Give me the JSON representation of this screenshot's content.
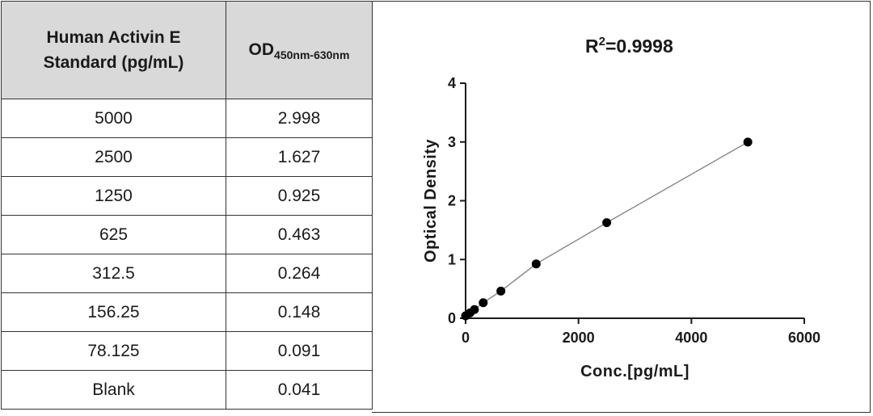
{
  "table": {
    "header_col1": "Human Activin E Standard (pg/mL)",
    "header_col2_main": "OD",
    "header_col2_sub": "450nm-630nm",
    "rows": [
      {
        "conc": "5000",
        "od": "2.998"
      },
      {
        "conc": "2500",
        "od": "1.627"
      },
      {
        "conc": "1250",
        "od": "0.925"
      },
      {
        "conc": "625",
        "od": "0.463"
      },
      {
        "conc": "312.5",
        "od": "0.264"
      },
      {
        "conc": "156.25",
        "od": "0.148"
      },
      {
        "conc": "78.125",
        "od": "0.091"
      },
      {
        "conc": "Blank",
        "od": "0.041"
      }
    ]
  },
  "chart_data": {
    "type": "scatter",
    "title": "R2=0.9998",
    "title_main": "R",
    "title_sup": "2",
    "title_rest": "=0.9998",
    "xlabel": "Conc.[pg/mL]",
    "ylabel": "Optical Density",
    "xlim": [
      0,
      6000
    ],
    "ylim": [
      0,
      4
    ],
    "xticks": [
      0,
      2000,
      4000,
      6000
    ],
    "yticks": [
      0,
      1,
      2,
      3,
      4
    ],
    "grid": false,
    "fit_line": true,
    "series": [
      {
        "x": [
          0,
          78.125,
          156.25,
          312.5,
          625,
          1250,
          2500,
          5000
        ],
        "y": [
          0.041,
          0.091,
          0.148,
          0.264,
          0.463,
          0.925,
          1.627,
          2.998
        ]
      }
    ],
    "colors": {
      "points": "#000000",
      "line": "#808080",
      "axis": "#1a1a1a"
    }
  }
}
